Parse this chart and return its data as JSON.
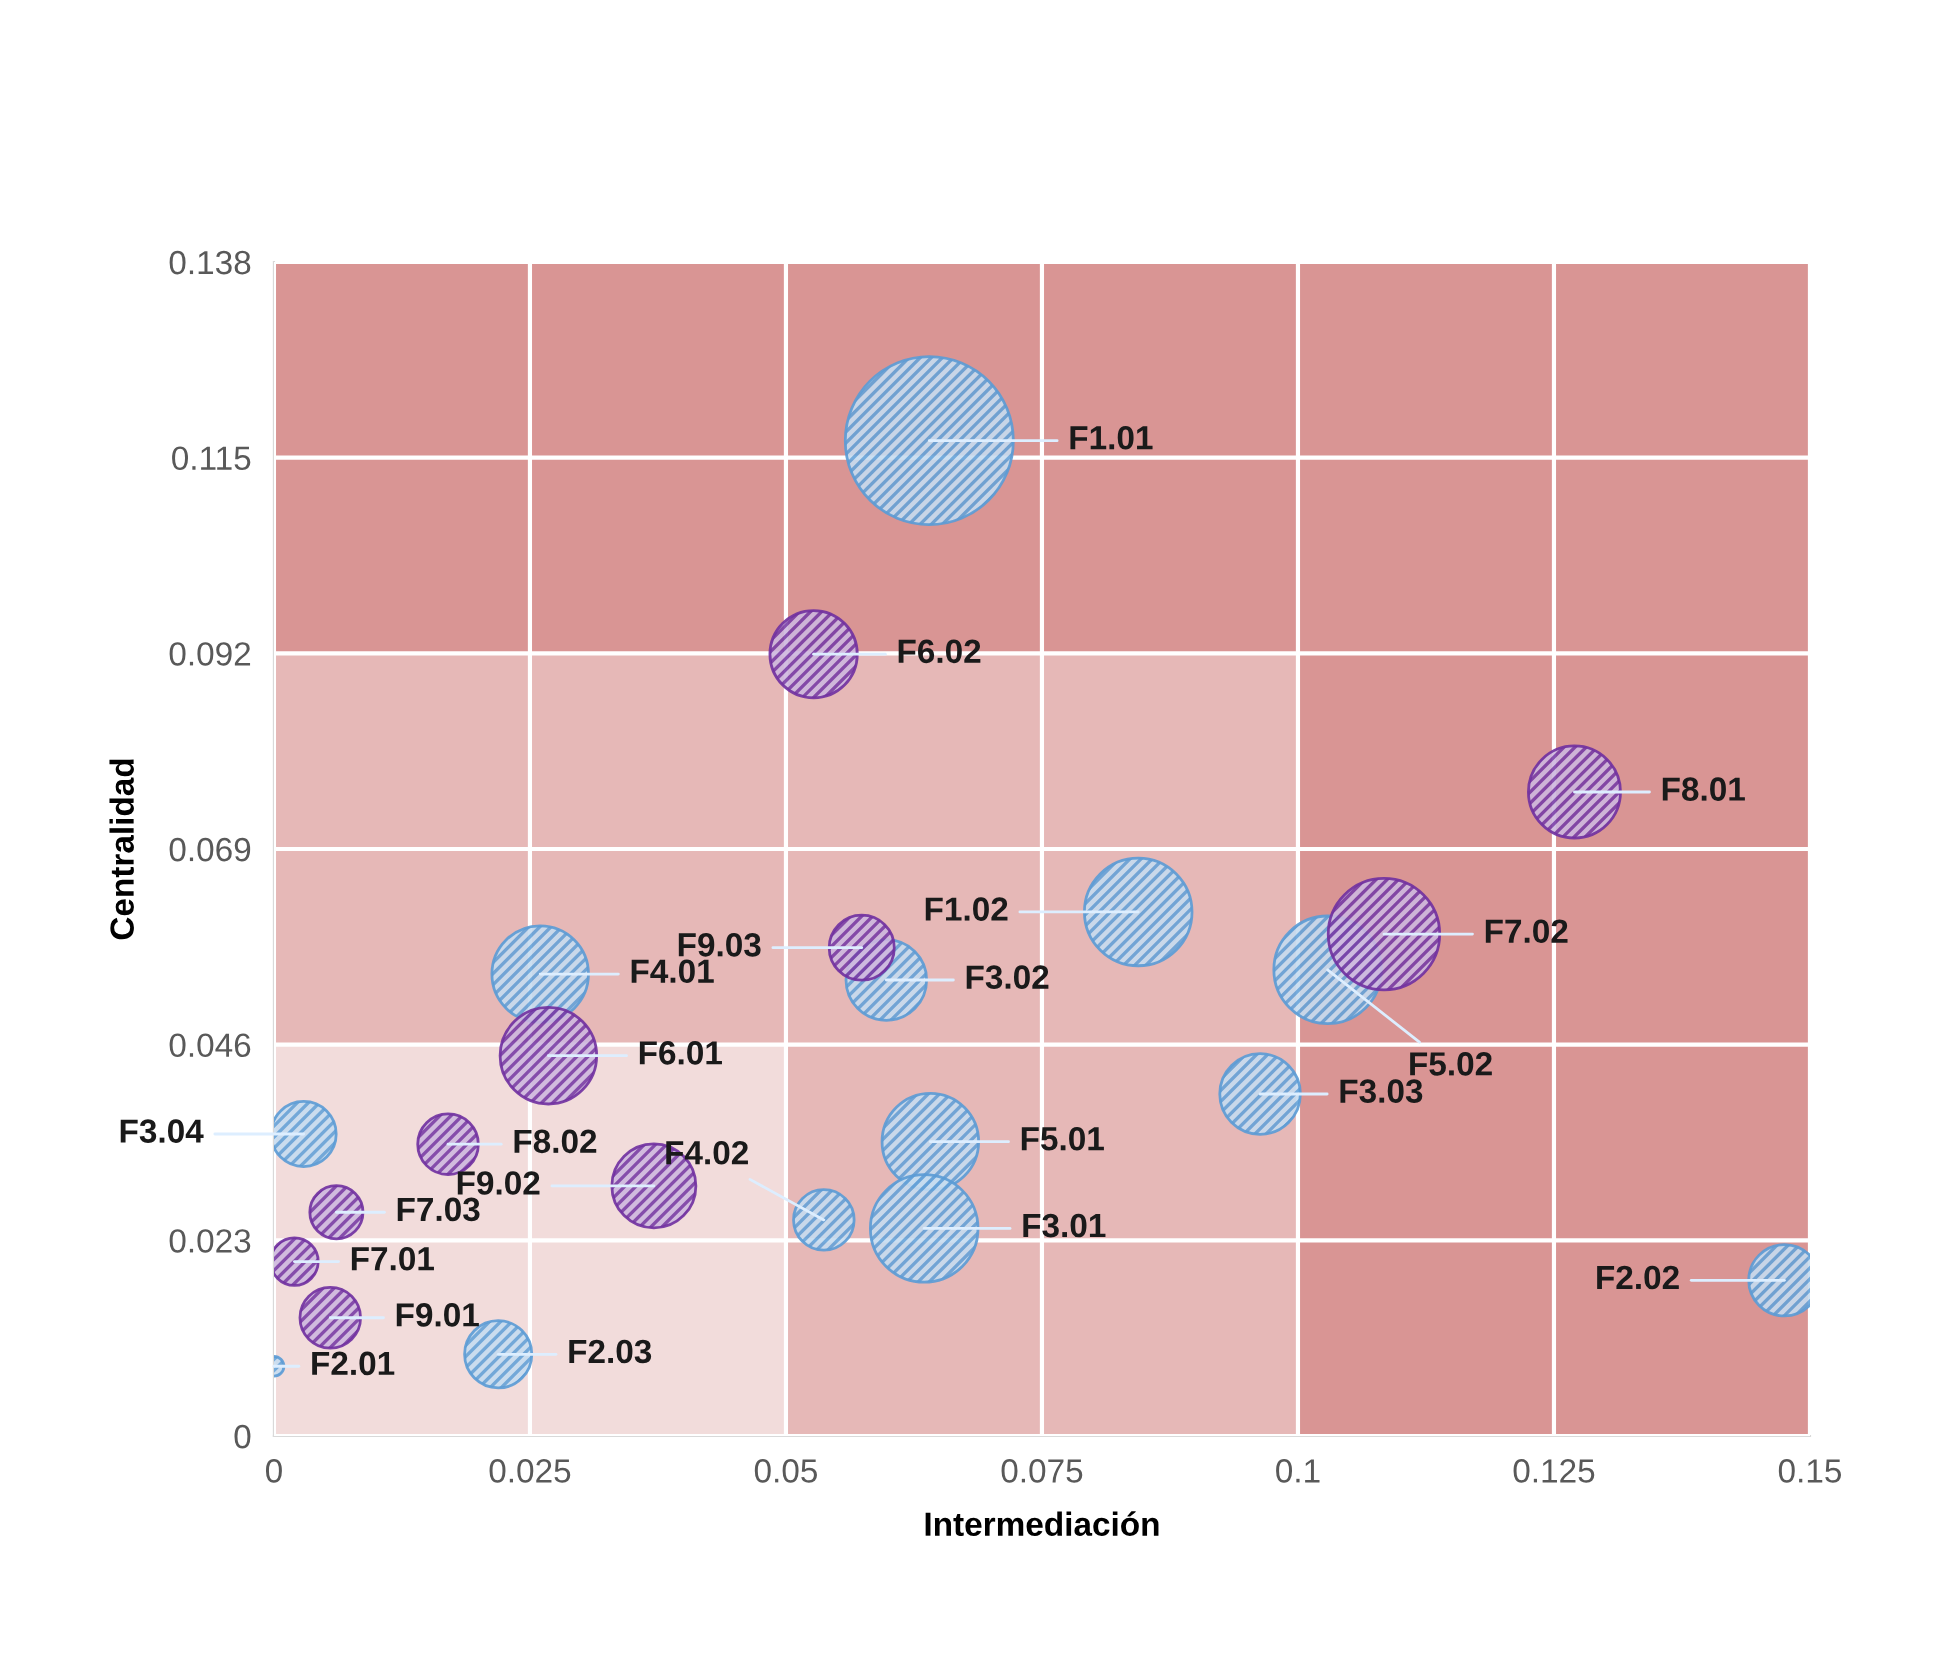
{
  "chart_data": {
    "type": "bubble",
    "xlabel": "Intermediación",
    "ylabel": "Centralidad",
    "xlim": [
      0,
      0.15
    ],
    "ylim": [
      0,
      0.138
    ],
    "xticks": [
      0,
      0.025,
      0.05,
      0.075,
      0.1,
      0.125,
      0.15
    ],
    "yticks": [
      0,
      0.023,
      0.046,
      0.069,
      0.092,
      0.115,
      0.138
    ],
    "grid": true,
    "series": [
      {
        "color": "#5b9bd5",
        "x": [
          0.064,
          0.0844,
          0.1029,
          0.0598,
          0.026,
          0.0029,
          0.0537,
          0.0641,
          0.0635,
          0.0219,
          0.0,
          0.0963,
          0.1475
        ],
        "values": [
          0.117,
          0.0616,
          0.0548,
          0.0536,
          0.0543,
          0.0355,
          0.0254,
          0.0346,
          0.0244,
          0.0096,
          0.0082,
          0.0402,
          0.0183
        ],
        "sizes": [
          1,
          0.41,
          0.41,
          0.23,
          0.33,
          0.15,
          0.13,
          0.33,
          0.41,
          0.16,
          0.014,
          0.23,
          0.18
        ]
      },
      {
        "color": "#7030a0",
        "x": [
          0.0527,
          0.127,
          0.1084,
          0.0574,
          0.0268,
          0.017,
          0.0371,
          0.0061,
          0.002,
          0.0055
        ],
        "values": [
          0.0919,
          0.0757,
          0.059,
          0.0574,
          0.0447,
          0.0343,
          0.0294,
          0.0263,
          0.0205,
          0.0139
        ],
        "sizes": [
          0.27,
          0.3,
          0.44,
          0.15,
          0.33,
          0.13,
          0.25,
          0.1,
          0.08,
          0.13
        ]
      }
    ],
    "annotations": [
      {
        "text": "F1.01",
        "x": 0.064,
        "y": 0.117
      },
      {
        "text": "F1.02",
        "x": 0.0844,
        "y": 0.0616
      },
      {
        "text": "F5.02",
        "x": 0.1029,
        "y": 0.0548
      },
      {
        "text": "F3.02",
        "x": 0.0598,
        "y": 0.0536
      },
      {
        "text": "F4.01",
        "x": 0.026,
        "y": 0.0543
      },
      {
        "text": "F3.04",
        "x": 0.0029,
        "y": 0.0355
      },
      {
        "text": "F4.02",
        "x": 0.0537,
        "y": 0.0254
      },
      {
        "text": "F5.01",
        "x": 0.0641,
        "y": 0.0346
      },
      {
        "text": "F3.01",
        "x": 0.0635,
        "y": 0.0244
      },
      {
        "text": "F2.03",
        "x": 0.0219,
        "y": 0.0096
      },
      {
        "text": "F2.01",
        "x": 0.0,
        "y": 0.0082
      },
      {
        "text": "F3.03",
        "x": 0.0963,
        "y": 0.0402
      },
      {
        "text": "F2.02",
        "x": 0.1475,
        "y": 0.0183
      },
      {
        "text": "F6.02",
        "x": 0.0527,
        "y": 0.0919
      },
      {
        "text": "F8.01",
        "x": 0.127,
        "y": 0.0757
      },
      {
        "text": "F7.02",
        "x": 0.1084,
        "y": 0.059
      },
      {
        "text": "F9.03",
        "x": 0.0574,
        "y": 0.0574
      },
      {
        "text": "F6.01",
        "x": 0.0268,
        "y": 0.0447
      },
      {
        "text": "F8.02",
        "x": 0.017,
        "y": 0.0343
      },
      {
        "text": "F9.02",
        "x": 0.0371,
        "y": 0.0294
      },
      {
        "text": "F7.03",
        "x": 0.0061,
        "y": 0.0263
      },
      {
        "text": "F7.01",
        "x": 0.002,
        "y": 0.0205
      },
      {
        "text": "F9.01",
        "x": 0.0055,
        "y": 0.0139
      }
    ]
  }
}
